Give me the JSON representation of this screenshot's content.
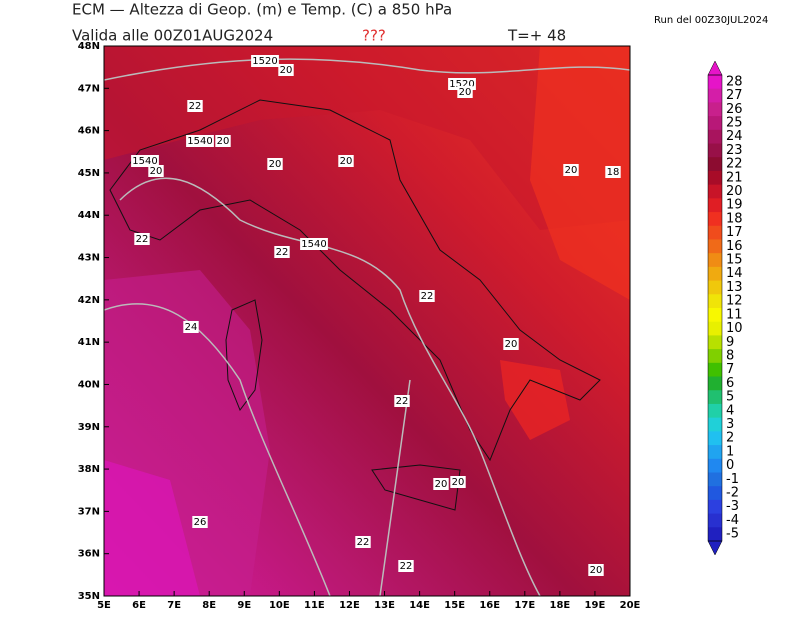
{
  "header": {
    "title": "ECM — Altezza di Geop. (m) e Temp. (C) a 850 hPa",
    "subtitle": "Valida alle 00Z01AUG2024",
    "flag": "???",
    "step": "T=+ 48",
    "run": "Run del 00Z30JUL2024"
  },
  "map": {
    "lat_labels": [
      "48N",
      "47N",
      "46N",
      "45N",
      "44N",
      "43N",
      "42N",
      "41N",
      "40N",
      "39N",
      "38N",
      "37N",
      "36N",
      "35N"
    ],
    "lon_labels": [
      "5E",
      "6E",
      "7E",
      "8E",
      "9E",
      "10E",
      "11E",
      "12E",
      "13E",
      "14E",
      "15E",
      "16E",
      "17E",
      "18E",
      "19E",
      "20E"
    ],
    "contour_labels": [
      "1520",
      "20",
      "1520",
      "20",
      "22",
      "1540",
      "20",
      "1540",
      "20",
      "20",
      "20",
      "20",
      "18",
      "22",
      "22",
      "1540",
      "22",
      "24",
      "20",
      "22",
      "20",
      "20",
      "26",
      "22",
      "22",
      "20"
    ]
  },
  "colorbar": {
    "labels": [
      28,
      27,
      26,
      25,
      24,
      23,
      22,
      21,
      20,
      19,
      18,
      17,
      16,
      15,
      14,
      13,
      12,
      11,
      10,
      9,
      8,
      7,
      6,
      5,
      4,
      3,
      2,
      1,
      0,
      -1,
      -2,
      -3,
      -4,
      -5
    ],
    "colors": [
      "#e614c8",
      "#d41ea8",
      "#c8208c",
      "#b81878",
      "#a8145e",
      "#981048",
      "#8c0c30",
      "#a80c28",
      "#c81428",
      "#e01e24",
      "#f03020",
      "#f04c1c",
      "#f06a18",
      "#f08c14",
      "#f0aa10",
      "#f0c80c",
      "#f0e408",
      "#f8f800",
      "#e8f000",
      "#b8e000",
      "#80d000",
      "#40c000",
      "#20b030",
      "#20c070",
      "#20d0a8",
      "#20d0d8",
      "#20c0f0",
      "#20a4f0",
      "#2088f0",
      "#2070e0",
      "#2058e0",
      "#2c40e0",
      "#2830d0",
      "#2020c0"
    ]
  }
}
